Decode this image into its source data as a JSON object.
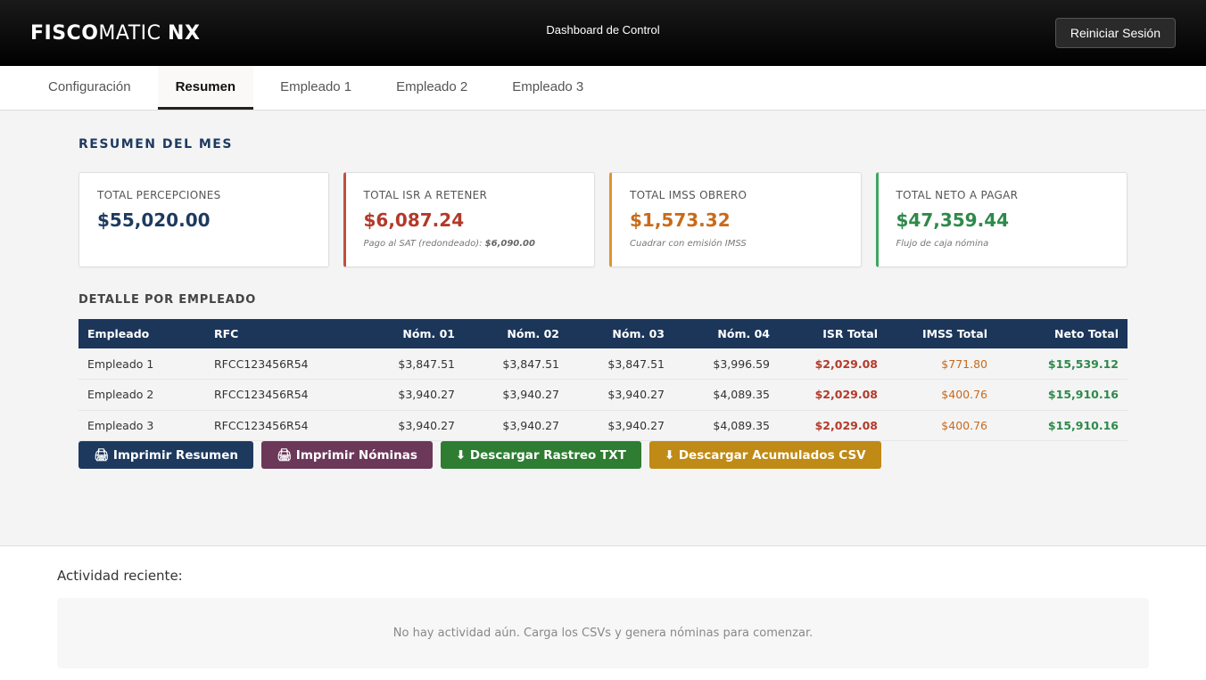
{
  "header": {
    "brand_bold": "FISCO",
    "brand_light": "MATIC",
    "brand_suffix": "NX",
    "title": "Dashboard de Control",
    "reset_label": "Reiniciar Sesión"
  },
  "tabs": [
    {
      "label": "Configuración",
      "active": false
    },
    {
      "label": "Resumen",
      "active": true
    },
    {
      "label": "Empleado 1",
      "active": false
    },
    {
      "label": "Empleado 2",
      "active": false
    },
    {
      "label": "Empleado 3",
      "active": false
    }
  ],
  "summary": {
    "title": "RESUMEN DEL MES",
    "cards": [
      {
        "label": "TOTAL PERCEPCIONES",
        "value": "$55,020.00",
        "color": "#1e3a5f"
      },
      {
        "label": "TOTAL ISR A RETENER",
        "value": "$6,087.24",
        "note": "Pago al SAT (redondeado):",
        "note_value": "$6,090.00",
        "color": "#b33a2a"
      },
      {
        "label": "TOTAL IMSS OBRERO",
        "value": "$1,573.32",
        "note": "Cuadrar con emisión IMSS",
        "color": "#c96a1a"
      },
      {
        "label": "TOTAL NETO A PAGAR",
        "value": "$47,359.44",
        "note": "Flujo de caja nómina",
        "color": "#2e8a4a"
      }
    ]
  },
  "detail": {
    "title": "DETALLE POR EMPLEADO",
    "columns": [
      "Empleado",
      "RFC",
      "Nóm. 01",
      "Nóm. 02",
      "Nóm. 03",
      "Nóm. 04",
      "ISR Total",
      "IMSS Total",
      "Neto Total"
    ],
    "rows": [
      [
        "Empleado 1",
        "RFCC123456R54",
        "$3,847.51",
        "$3,847.51",
        "$3,847.51",
        "$3,996.59",
        "$2,029.08",
        "$771.80",
        "$15,539.12"
      ],
      [
        "Empleado 2",
        "RFCC123456R54",
        "$3,940.27",
        "$3,940.27",
        "$3,940.27",
        "$4,089.35",
        "$2,029.08",
        "$400.76",
        "$15,910.16"
      ],
      [
        "Empleado 3",
        "RFCC123456R54",
        "$3,940.27",
        "$3,940.27",
        "$3,940.27",
        "$4,089.35",
        "$2,029.08",
        "$400.76",
        "$15,910.16"
      ]
    ]
  },
  "actions": {
    "print_summary": "🖨 Imprimir Resumen",
    "print_payrolls": "🖨 Imprimir Nóminas",
    "download_txt": "⬇ Descargar Rastreo TXT",
    "download_csv": "⬇ Descargar Acumulados CSV"
  },
  "activity": {
    "title": "Actividad reciente:",
    "empty": "No hay actividad aún. Carga los CSVs y genera nóminas para comenzar."
  }
}
